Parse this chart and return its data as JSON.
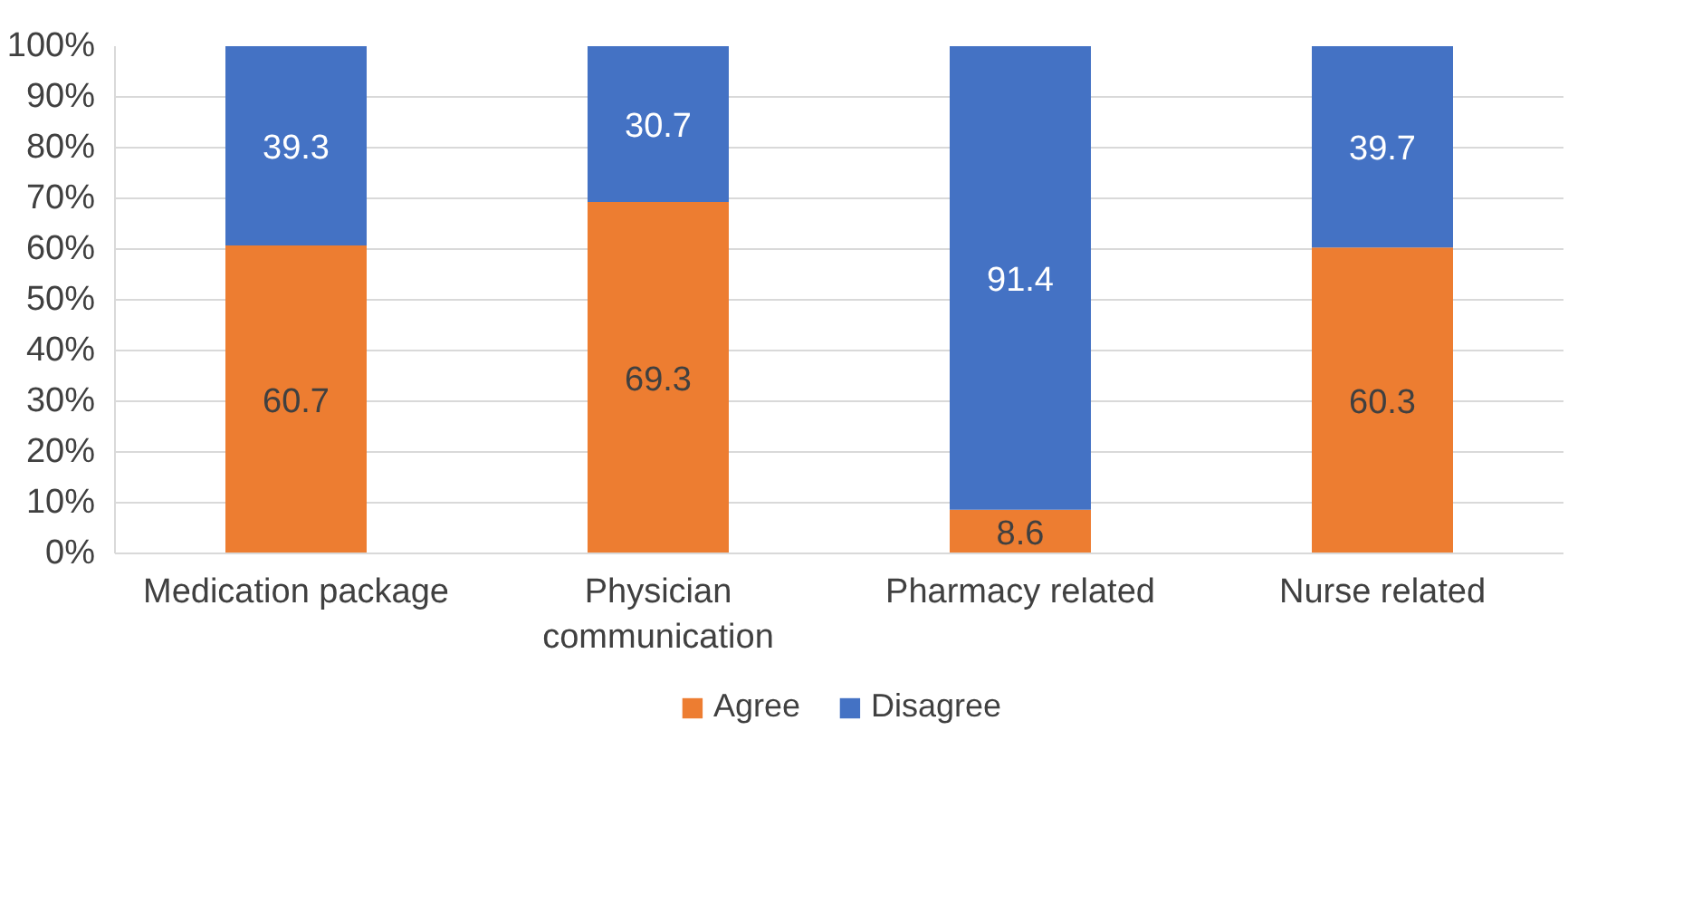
{
  "chart_data": {
    "type": "bar",
    "stacked": true,
    "categories": [
      "Medication package",
      "Physician communication",
      "Pharmacy related",
      "Nurse related"
    ],
    "series": [
      {
        "name": "Agree",
        "color": "#ed7d31",
        "values": [
          60.7,
          69.3,
          8.6,
          60.3
        ]
      },
      {
        "name": "Disagree",
        "color": "#4472c4",
        "values": [
          39.3,
          30.7,
          91.4,
          39.7
        ]
      }
    ],
    "ylim": [
      0,
      100
    ],
    "yticks": [
      {
        "value": 0,
        "label": "0%"
      },
      {
        "value": 10,
        "label": "10%"
      },
      {
        "value": 20,
        "label": "20%"
      },
      {
        "value": 30,
        "label": "30%"
      },
      {
        "value": 40,
        "label": "40%"
      },
      {
        "value": 50,
        "label": "50%"
      },
      {
        "value": 60,
        "label": "60%"
      },
      {
        "value": 70,
        "label": "70%"
      },
      {
        "value": 80,
        "label": "80%"
      },
      {
        "value": 90,
        "label": "90%"
      },
      {
        "value": 100,
        "label": "100%"
      }
    ],
    "grid": "y",
    "legend": "bottom",
    "data_labels": true
  }
}
